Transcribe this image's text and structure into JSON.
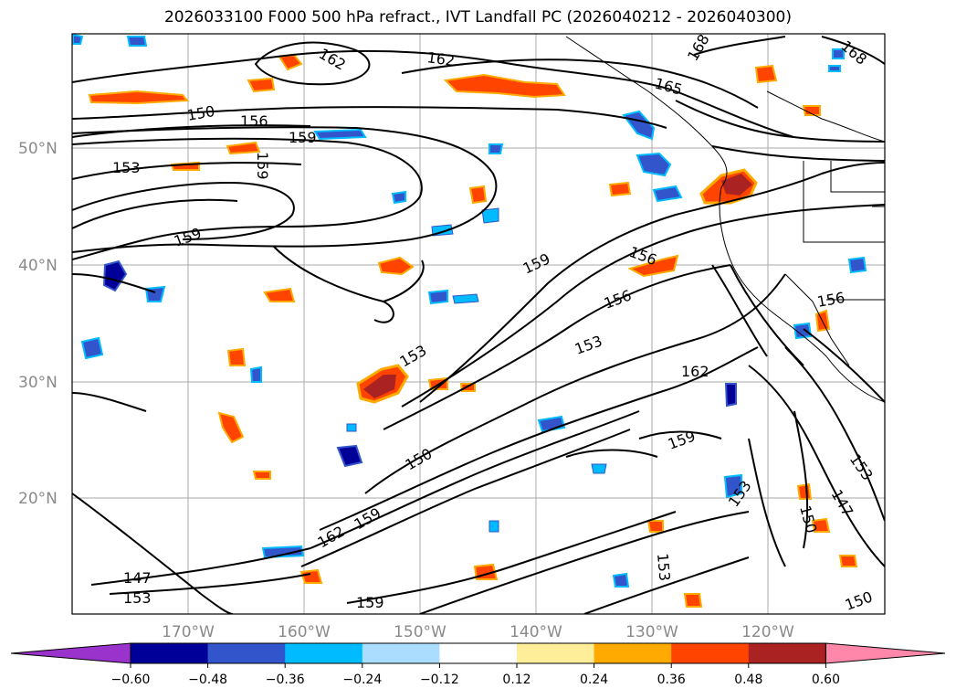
{
  "title": "2026033100 F000 500 hPa refract., IVT Landfall PC (2026040212 - 2026040300)",
  "map": {
    "lat_labels": [
      "50°N",
      "40°N",
      "30°N",
      "20°N"
    ],
    "lon_labels": [
      "170°W",
      "160°W",
      "150°W",
      "140°W",
      "130°W",
      "120°W"
    ],
    "contour_labels": [
      "162",
      "168",
      "168",
      "165",
      "162",
      "150",
      "156",
      "159",
      "153",
      "159",
      "159",
      "156",
      "156",
      "153",
      "153",
      "162",
      "159",
      "150",
      "153",
      "153",
      "147",
      "150",
      "159",
      "162",
      "147",
      "153",
      "159",
      "159",
      "156",
      "153",
      "150"
    ]
  },
  "colorbar": {
    "ticks": [
      "−0.60",
      "−0.48",
      "−0.36",
      "−0.24",
      "−0.12",
      "0.12",
      "0.24",
      "0.36",
      "0.48",
      "0.60"
    ],
    "colors": [
      "#9933cc",
      "#000099",
      "#3355cc",
      "#00bbff",
      "#aaddff",
      "#ffffff",
      "#ffee99",
      "#ffaa00",
      "#ff4400",
      "#aa2222",
      "#ff88aa"
    ]
  }
}
